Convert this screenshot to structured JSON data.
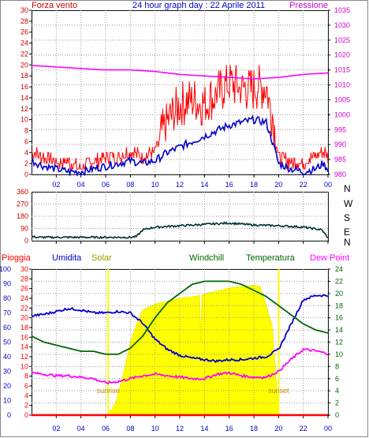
{
  "chart_data": [
    {
      "type": "line",
      "title": "24 hour graph day : 22 Aprile 2011",
      "left_label": "Forza vento",
      "right_label": "Pressione",
      "colors": {
        "wind": "#ff0000",
        "gust_avg": "#0000cc",
        "pressure": "#ff00ff",
        "left_axis": "#cc0000",
        "right_axis": "#cc00cc",
        "title": "#0000cc"
      },
      "x_ticks": [
        "02",
        "04",
        "06",
        "08",
        "10",
        "12",
        "14",
        "16",
        "18",
        "20",
        "22",
        "00"
      ],
      "y_left_ticks": [
        "0",
        "2",
        "4",
        "6",
        "8",
        "10",
        "12",
        "14",
        "16",
        "18",
        "20",
        "22",
        "24",
        "26",
        "28",
        "30"
      ],
      "y_right_ticks": [
        "980",
        "985",
        "990",
        "995",
        "1000",
        "1005",
        "1010",
        "1015",
        "1020",
        "1025",
        "1030",
        "1035"
      ],
      "ylim_left": [
        0,
        30
      ],
      "ylim_right": [
        980,
        1035
      ],
      "series": [
        {
          "key": "wind_max",
          "hours": [
            0,
            1,
            2,
            3,
            4,
            5,
            6,
            7,
            8,
            9,
            10,
            11,
            12,
            13,
            14,
            15,
            16,
            17,
            18,
            19,
            19.5,
            20,
            21,
            22,
            23,
            23.6,
            24
          ],
          "values": [
            4,
            3,
            2,
            2,
            1,
            2,
            3,
            3,
            4,
            3,
            4,
            9,
            12,
            13,
            12,
            14,
            16,
            15,
            15,
            15,
            10,
            3,
            2,
            2,
            3,
            4,
            3
          ]
        },
        {
          "key": "wind_avg",
          "hours": [
            0,
            1,
            2,
            3,
            4,
            5,
            6,
            7,
            8,
            9,
            10,
            11,
            12,
            13,
            14,
            15,
            16,
            17,
            18,
            19,
            19.5,
            20,
            21,
            22,
            23,
            23.6,
            24
          ],
          "values": [
            2.5,
            1.5,
            1,
            0.5,
            0.5,
            1,
            1.5,
            2,
            2.5,
            2,
            2.5,
            4,
            5,
            6,
            7,
            8,
            9,
            9.5,
            10,
            9.5,
            6,
            2,
            1,
            0.5,
            1,
            2,
            1
          ]
        },
        {
          "key": "pressure",
          "hours": [
            0,
            2,
            4,
            6,
            8,
            10,
            12,
            14,
            16,
            18,
            20,
            22,
            24
          ],
          "values": [
            1016.5,
            1016,
            1015.5,
            1015,
            1015,
            1014.5,
            1013.5,
            1013,
            1012.5,
            1012,
            1012.5,
            1013.5,
            1014
          ]
        }
      ]
    },
    {
      "type": "line",
      "title": "",
      "y_ticks": [
        "0",
        "90",
        "180",
        "270",
        "360"
      ],
      "ylim": [
        0,
        360
      ],
      "compass_labels": [
        "N",
        "W",
        "S",
        "E",
        "N"
      ],
      "colors": {
        "direction": "#003333",
        "axis": "#cc0000"
      },
      "x_ticks": [
        "02",
        "04",
        "06",
        "08",
        "10",
        "12",
        "14",
        "16",
        "18",
        "20",
        "22",
        "00"
      ],
      "series": [
        {
          "key": "direction",
          "hours": [
            0,
            0.5,
            1,
            2,
            4,
            6,
            8,
            8.5,
            9,
            10,
            12,
            14,
            16,
            18,
            20,
            22,
            23.5,
            24
          ],
          "values": [
            30,
            25,
            25,
            25,
            25,
            25,
            25,
            30,
            80,
            100,
            110,
            120,
            130,
            115,
            110,
            100,
            80,
            20
          ]
        }
      ]
    },
    {
      "type": "line",
      "title": "",
      "header_labels": {
        "rain": "Pioggia",
        "humidity": "Umidita",
        "solar": "Solar",
        "windchill": "Windchill",
        "temperature": "Temperatura",
        "dewpoint": "Dew Point"
      },
      "annotations": {
        "sunrise": "sunrise",
        "sunset": "sunset"
      },
      "colors": {
        "rain": "#ff0000",
        "humidity": "#0000cc",
        "solar": "#ffff00",
        "solar_text": "#999900",
        "windchill": "#006600",
        "temperature": "#006600",
        "dewpoint": "#ff00ff",
        "annot": "#cc8800"
      },
      "x_ticks": [
        "02",
        "04",
        "06",
        "08",
        "10",
        "12",
        "14",
        "16",
        "18",
        "20",
        "22",
        "00"
      ],
      "y_hum_ticks": [
        "0",
        "10",
        "20",
        "30",
        "40",
        "50",
        "60",
        "70",
        "80",
        "90",
        "100"
      ],
      "y_rain_ticks": [
        "0",
        "2",
        "4",
        "6",
        "8",
        "10",
        "12",
        "14",
        "16",
        "18",
        "20",
        "22",
        "24",
        "26",
        "28",
        "30"
      ],
      "y_temp_ticks": [
        "0",
        "2",
        "4",
        "6",
        "8",
        "10",
        "12",
        "14",
        "16",
        "18",
        "20",
        "22",
        "24"
      ],
      "ylim_hum": [
        0,
        100
      ],
      "ylim_temp": [
        0,
        24
      ],
      "sunrise_hour": 6.2,
      "sunset_hour": 20,
      "series": [
        {
          "key": "solar",
          "hours": [
            6.2,
            6.8,
            7.5,
            8,
            8.5,
            9,
            10,
            11,
            12,
            13,
            13.6,
            13.7,
            13.8,
            14,
            15,
            16,
            17,
            18,
            18.5,
            19,
            19.5,
            20
          ],
          "values": [
            0,
            8,
            30,
            50,
            62,
            72,
            76,
            78,
            80,
            81,
            82,
            50,
            82,
            83,
            85,
            87,
            88,
            89,
            88,
            75,
            60,
            0
          ]
        },
        {
          "key": "humidity",
          "hours": [
            0,
            1,
            2,
            3,
            4,
            5,
            6,
            7,
            8,
            9,
            10,
            11,
            12,
            13,
            14,
            15,
            16,
            17,
            18,
            19,
            20,
            21,
            22,
            23,
            24
          ],
          "values": [
            68,
            69,
            71,
            73,
            72,
            70,
            70,
            71,
            70,
            63,
            52,
            45,
            41,
            39,
            38,
            37,
            38,
            38,
            39,
            40,
            45,
            62,
            79,
            82,
            82
          ]
        },
        {
          "key": "temperature",
          "hours": [
            0,
            1,
            2,
            3,
            4,
            5,
            6,
            7,
            8,
            9,
            10,
            11,
            12,
            13,
            14,
            15,
            16,
            17,
            18,
            19,
            20,
            21,
            22,
            23,
            24
          ],
          "values": [
            13,
            12,
            11.5,
            11,
            10.5,
            10.5,
            10,
            10,
            11,
            13,
            16,
            18.5,
            20,
            21.5,
            22,
            22,
            22,
            21.5,
            20.5,
            19.5,
            18,
            16.5,
            15,
            14,
            13.5
          ]
        },
        {
          "key": "dewpoint",
          "hours": [
            0,
            1,
            2,
            3,
            4,
            5,
            6,
            7,
            8,
            9,
            10,
            11,
            12,
            13,
            14,
            15,
            16,
            17,
            18,
            19,
            20,
            21,
            22,
            23,
            24
          ],
          "values": [
            29,
            28,
            27,
            27,
            26,
            25,
            22,
            23,
            25,
            27,
            28,
            27,
            26,
            25,
            25,
            28,
            29,
            27,
            26,
            26,
            30,
            38,
            45,
            44,
            42
          ]
        },
        {
          "key": "rain",
          "hours": [
            0,
            24
          ],
          "values": [
            0,
            0
          ]
        }
      ]
    }
  ]
}
